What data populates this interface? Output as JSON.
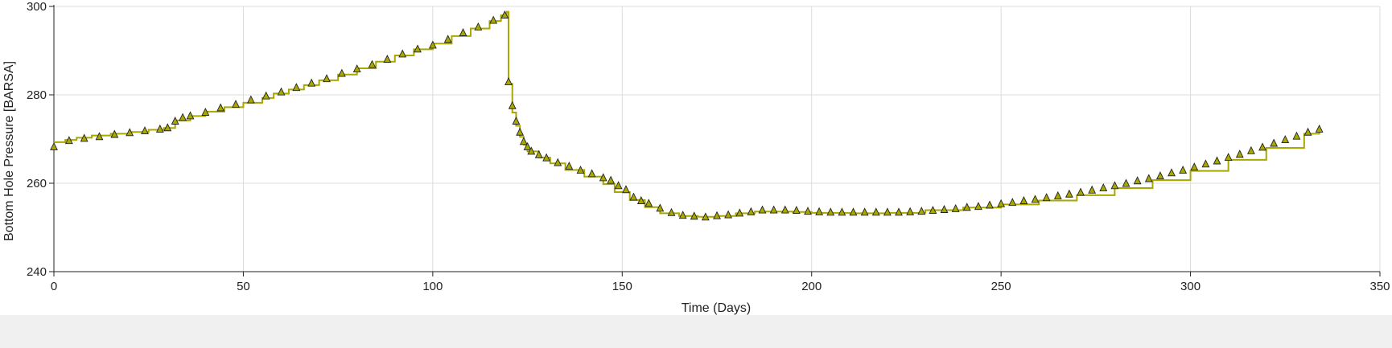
{
  "chart_data": {
    "type": "line",
    "title": "",
    "xlabel": "Time (Days)",
    "ylabel": "Bottom Hole Pressure [BARSA]",
    "xlim": [
      0,
      350
    ],
    "ylim": [
      240,
      300
    ],
    "xticks": [
      0,
      50,
      100,
      150,
      200,
      250,
      300,
      350
    ],
    "yticks": [
      240,
      260,
      280,
      300
    ],
    "grid": true,
    "legend": "none",
    "series": [
      {
        "style": "step-line",
        "color": "#a8a800",
        "x": [
          0,
          3,
          6,
          10,
          15,
          20,
          25,
          29,
          32,
          36,
          40,
          45,
          50,
          55,
          58,
          62,
          66,
          70,
          75,
          80,
          85,
          90,
          95,
          100,
          105,
          110,
          115,
          118,
          119.5,
          120,
          121,
          122,
          123,
          124,
          125,
          128,
          131,
          135,
          140,
          145,
          148,
          152,
          156,
          160,
          165,
          170,
          175,
          180,
          185,
          190,
          195,
          200,
          210,
          220,
          230,
          240,
          250,
          260,
          270,
          280,
          290,
          300,
          310,
          320,
          330,
          334
        ],
        "values": [
          269.3,
          269.8,
          270.3,
          270.8,
          271.2,
          271.6,
          272.1,
          272.5,
          274.2,
          275.2,
          276.2,
          277.2,
          278.2,
          279.3,
          280.3,
          281.2,
          282.2,
          283.3,
          284.6,
          286.0,
          287.5,
          288.9,
          290.3,
          291.6,
          293.3,
          295.0,
          296.7,
          298.0,
          298.8,
          282.5,
          276.0,
          273.0,
          270.5,
          268.7,
          267.2,
          265.8,
          264.5,
          263.0,
          261.5,
          259.8,
          258.0,
          256.2,
          254.6,
          253.2,
          252.6,
          252.4,
          252.6,
          253.2,
          253.6,
          253.6,
          253.5,
          253.3,
          253.2,
          253.3,
          253.9,
          254.5,
          255.2,
          256.1,
          257.3,
          258.9,
          260.7,
          262.8,
          265.3,
          268.0,
          271.2,
          272.0
        ]
      },
      {
        "style": "triangle-markers",
        "color": "#a8a800",
        "x": [
          0,
          4,
          8,
          12,
          16,
          20,
          24,
          28,
          30,
          32,
          34,
          36,
          40,
          44,
          48,
          52,
          56,
          60,
          64,
          68,
          72,
          76,
          80,
          84,
          88,
          92,
          96,
          100,
          104,
          108,
          112,
          116,
          119,
          120,
          121,
          122,
          123,
          124,
          125,
          126,
          128,
          130,
          133,
          136,
          139,
          142,
          145,
          147,
          149,
          151,
          153,
          155,
          157,
          160,
          163,
          166,
          169,
          172,
          175,
          178,
          181,
          184,
          187,
          190,
          193,
          196,
          199,
          202,
          205,
          208,
          211,
          214,
          217,
          220,
          223,
          226,
          229,
          232,
          235,
          238,
          241,
          244,
          247,
          250,
          253,
          256,
          259,
          262,
          265,
          268,
          271,
          274,
          277,
          280,
          283,
          286,
          289,
          292,
          295,
          298,
          301,
          304,
          307,
          310,
          313,
          316,
          319,
          322,
          325,
          328,
          331,
          334
        ],
        "values": [
          268.2,
          269.6,
          270.1,
          270.5,
          271.0,
          271.4,
          271.8,
          272.2,
          272.5,
          274.0,
          274.8,
          275.2,
          276.0,
          277.0,
          277.8,
          278.8,
          279.7,
          280.6,
          281.6,
          282.6,
          283.6,
          284.8,
          285.8,
          286.8,
          288.0,
          289.2,
          290.3,
          291.2,
          292.5,
          294.0,
          295.3,
          296.8,
          298.0,
          282.9,
          277.5,
          274.0,
          271.5,
          269.4,
          268.2,
          267.2,
          266.4,
          265.7,
          264.6,
          263.8,
          262.9,
          262.1,
          261.2,
          260.6,
          259.4,
          258.5,
          256.8,
          256.0,
          255.4,
          254.3,
          253.3,
          252.7,
          252.5,
          252.3,
          252.6,
          252.8,
          253.2,
          253.5,
          253.9,
          253.9,
          253.9,
          253.8,
          253.6,
          253.5,
          253.4,
          253.4,
          253.4,
          253.4,
          253.4,
          253.4,
          253.4,
          253.5,
          253.6,
          253.8,
          254.0,
          254.2,
          254.5,
          254.7,
          255.0,
          255.3,
          255.6,
          256.0,
          256.3,
          256.7,
          257.1,
          257.5,
          257.9,
          258.4,
          258.9,
          259.4,
          259.9,
          260.5,
          261.0,
          261.6,
          262.3,
          262.9,
          263.6,
          264.3,
          265.0,
          265.8,
          266.5,
          267.3,
          268.1,
          269.0,
          269.8,
          270.6,
          271.5,
          272.2
        ]
      }
    ]
  }
}
